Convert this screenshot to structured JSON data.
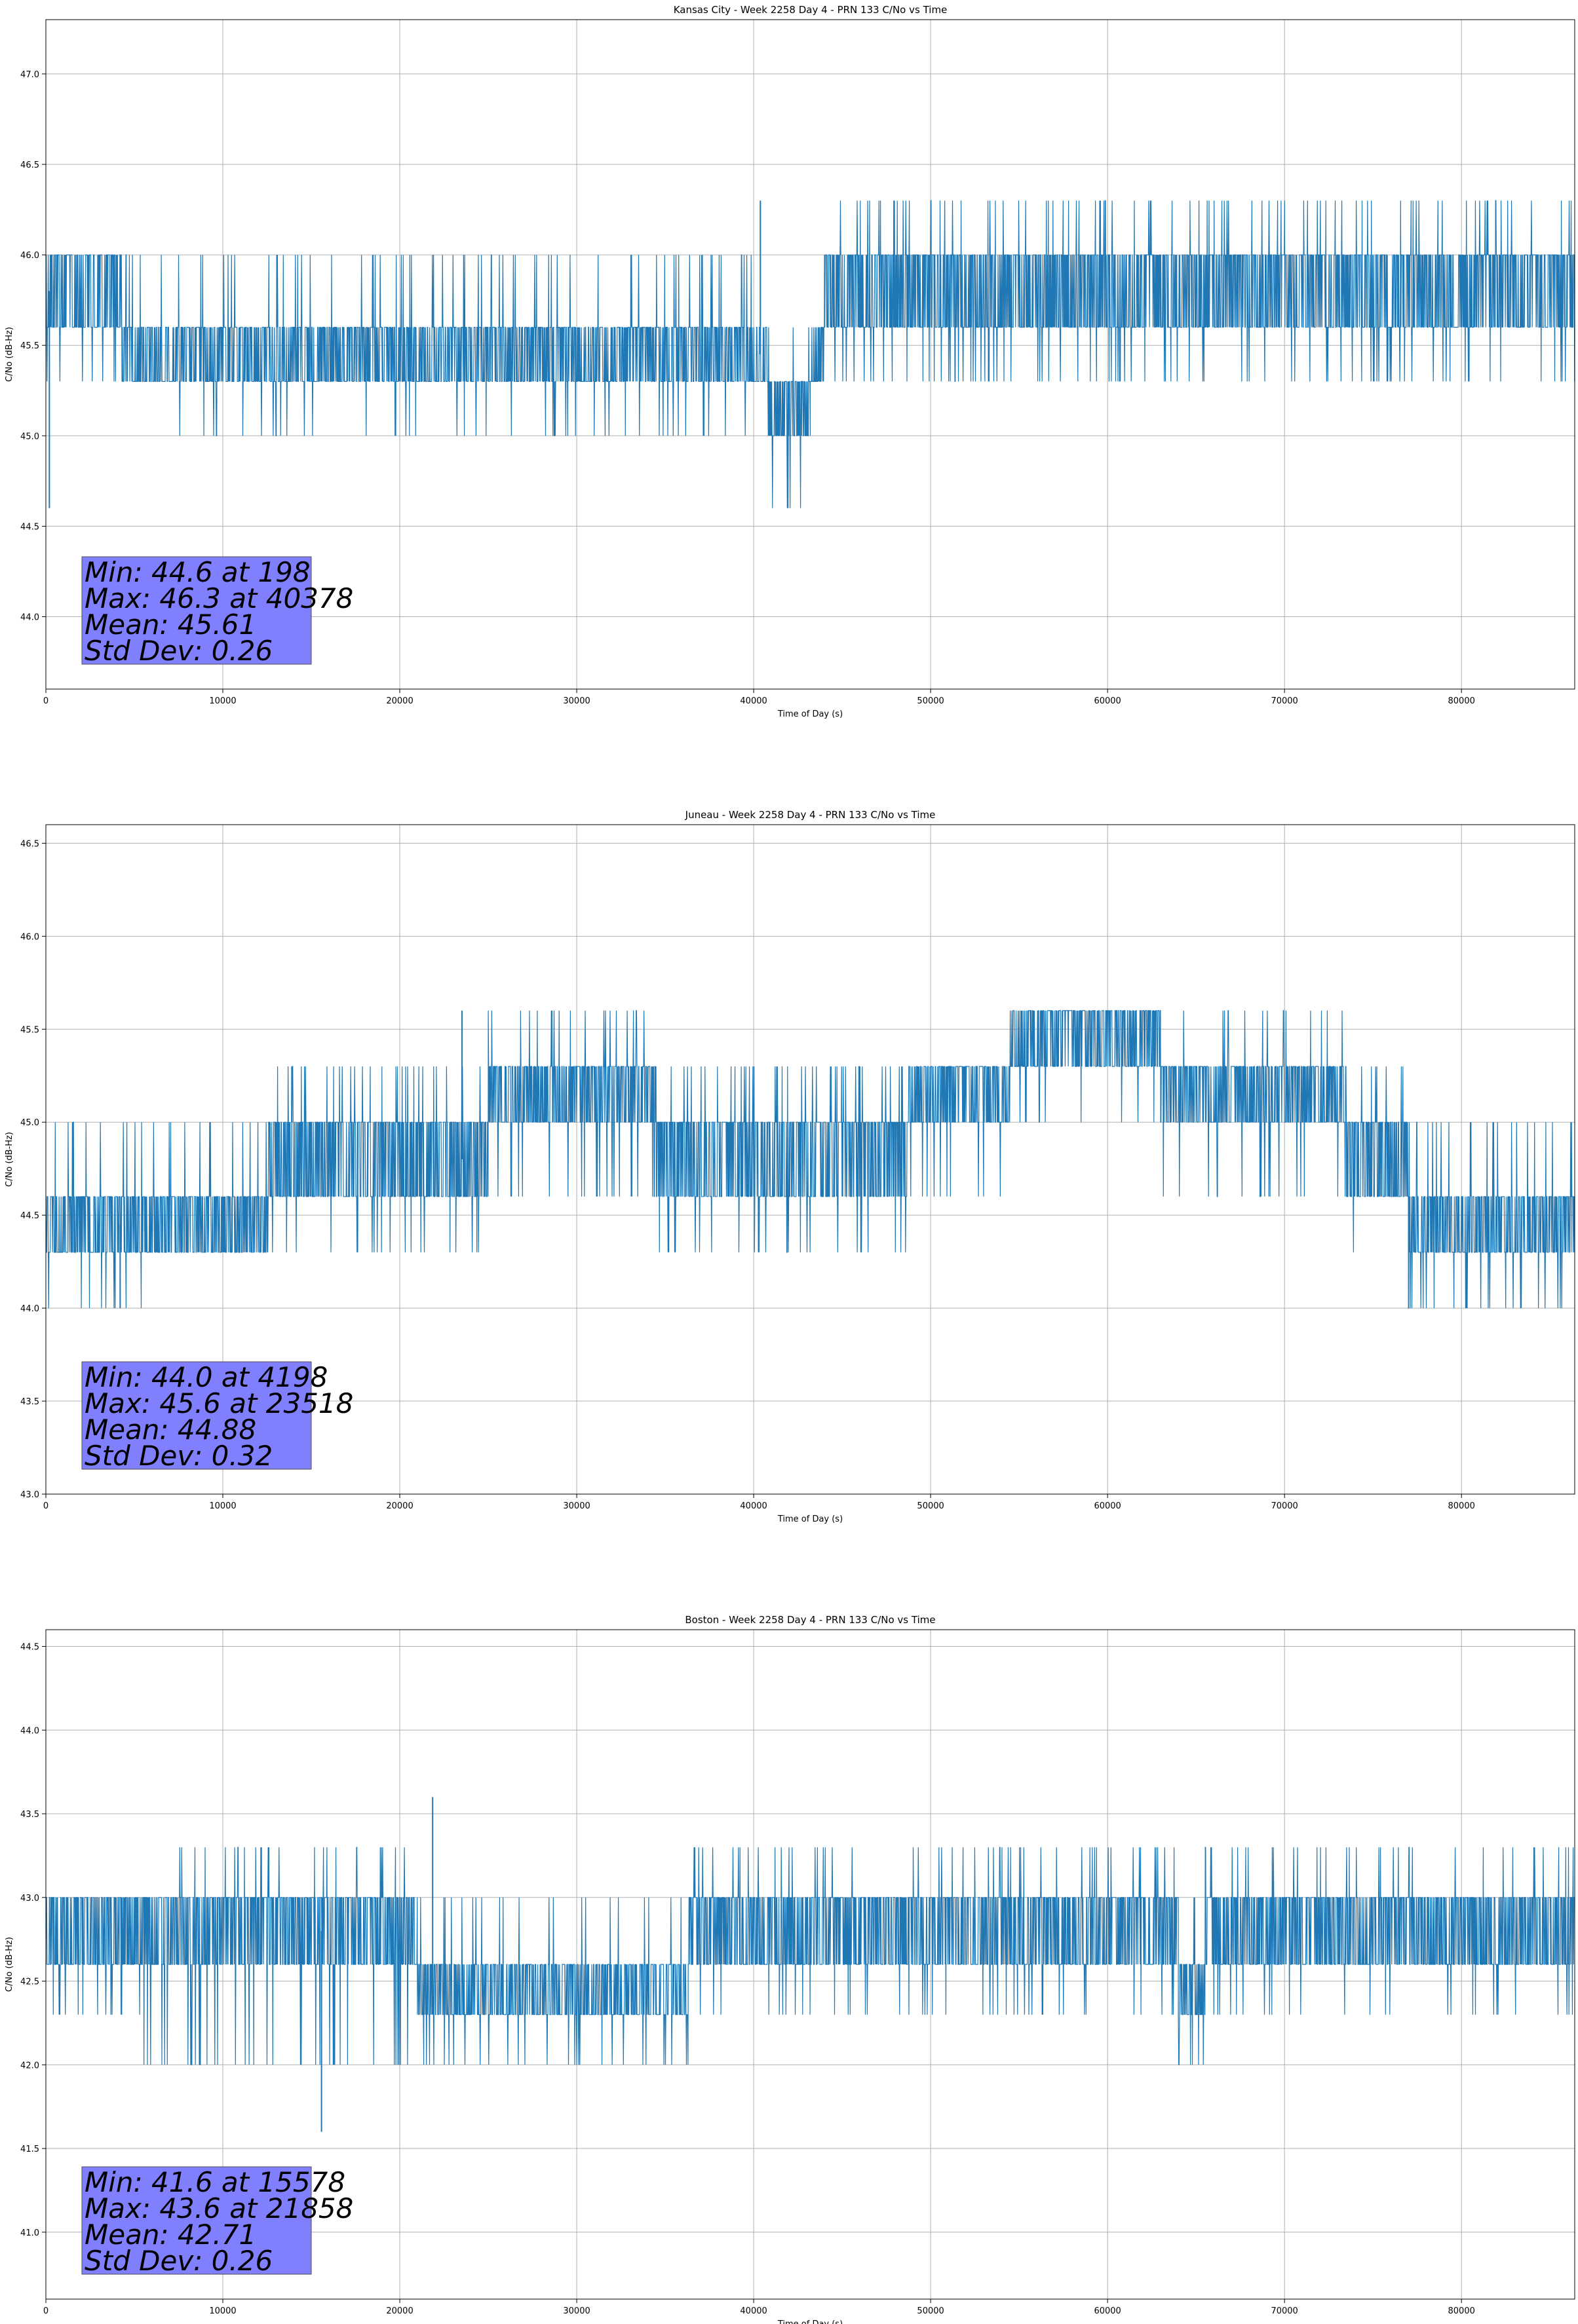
{
  "chart_data": [
    {
      "type": "line",
      "title": "Kansas City - Week 2258 Day 4 - PRN 133 C/No vs Time",
      "xlabel": "Time of Day (s)",
      "ylabel": "C/No (dB-Hz)",
      "xlim": [
        0,
        86400
      ],
      "ylim": [
        43.6,
        47.3
      ],
      "xticks": [
        0,
        10000,
        20000,
        30000,
        40000,
        50000,
        60000,
        70000,
        80000
      ],
      "yticks": [
        44.0,
        44.5,
        45.0,
        45.5,
        46.0,
        46.5,
        47.0
      ],
      "grid": true,
      "color": "#1f77b4",
      "segments": [
        {
          "x": [
            0,
            4300
          ],
          "lo": 45.6,
          "hi": 46.0,
          "spike_up": 46.0,
          "spike_down": 45.3
        },
        {
          "x": [
            4300,
            7500
          ],
          "lo": 45.3,
          "hi": 45.6,
          "spike_up": 46.0,
          "spike_down": 45.3
        },
        {
          "x": [
            7500,
            26500
          ],
          "lo": 45.3,
          "hi": 45.6,
          "spike_up": 46.0,
          "spike_down": 45.0
        },
        {
          "x": [
            26500,
            40800
          ],
          "lo": 45.3,
          "hi": 45.6,
          "spike_up": 46.0,
          "spike_down": 45.0
        },
        {
          "x": [
            40800,
            43200
          ],
          "lo": 45.0,
          "hi": 45.3,
          "spike_up": 45.6,
          "spike_down": 44.6
        },
        {
          "x": [
            43200,
            44000
          ],
          "lo": 45.3,
          "hi": 45.6,
          "spike_up": 46.0,
          "spike_down": 45.0
        },
        {
          "x": [
            44000,
            86400
          ],
          "lo": 45.6,
          "hi": 46.0,
          "spike_up": 46.3,
          "spike_down": 45.3
        }
      ],
      "extremes": [
        {
          "x": 198,
          "y": 44.6
        },
        {
          "x": 40378,
          "y": 46.3
        }
      ],
      "stats": [
        "Min: 44.6 at 198",
        "Max: 46.3 at 40378",
        "Mean: 45.61",
        "Std Dev: 0.26"
      ],
      "stats_box_color": "#8080ff"
    },
    {
      "type": "line",
      "title": "Juneau - Week 2258 Day 4 - PRN 133 C/No vs Time",
      "xlabel": "Time of Day (s)",
      "ylabel": "C/No (dB-Hz)",
      "xlim": [
        0,
        86400
      ],
      "ylim": [
        43.0,
        46.6
      ],
      "xticks": [
        0,
        10000,
        20000,
        30000,
        40000,
        50000,
        60000,
        70000,
        80000
      ],
      "yticks": [
        43.0,
        43.5,
        44.0,
        44.5,
        45.0,
        45.5,
        46.0,
        46.5
      ],
      "grid": true,
      "color": "#1f77b4",
      "segments": [
        {
          "x": [
            0,
            6000
          ],
          "lo": 44.3,
          "hi": 44.6,
          "spike_up": 45.0,
          "spike_down": 44.0
        },
        {
          "x": [
            6000,
            12500
          ],
          "lo": 44.3,
          "hi": 44.6,
          "spike_up": 45.0,
          "spike_down": 44.3
        },
        {
          "x": [
            12500,
            25000
          ],
          "lo": 44.6,
          "hi": 45.0,
          "spike_up": 45.3,
          "spike_down": 44.3
        },
        {
          "x": [
            25000,
            34500
          ],
          "lo": 45.0,
          "hi": 45.3,
          "spike_up": 45.6,
          "spike_down": 44.6
        },
        {
          "x": [
            34500,
            48700
          ],
          "lo": 44.6,
          "hi": 45.0,
          "spike_up": 45.3,
          "spike_down": 44.3
        },
        {
          "x": [
            48700,
            54500
          ],
          "lo": 45.0,
          "hi": 45.3,
          "spike_up": 45.3,
          "spike_down": 44.6
        },
        {
          "x": [
            54500,
            63000
          ],
          "lo": 45.3,
          "hi": 45.6,
          "spike_up": 45.6,
          "spike_down": 45.0
        },
        {
          "x": [
            63000,
            73500
          ],
          "lo": 45.0,
          "hi": 45.3,
          "spike_up": 45.6,
          "spike_down": 44.6
        },
        {
          "x": [
            73500,
            77000
          ],
          "lo": 44.6,
          "hi": 45.0,
          "spike_up": 45.3,
          "spike_down": 44.3
        },
        {
          "x": [
            77000,
            86400
          ],
          "lo": 44.3,
          "hi": 44.6,
          "spike_up": 45.0,
          "spike_down": 44.0
        }
      ],
      "extremes": [
        {
          "x": 4198,
          "y": 44.0
        },
        {
          "x": 23518,
          "y": 45.6
        }
      ],
      "stats": [
        "Min: 44.0 at 4198",
        "Max: 45.6 at 23518",
        "Mean: 44.88",
        "Std Dev: 0.32"
      ],
      "stats_box_color": "#8080ff"
    },
    {
      "type": "line",
      "title": "Boston - Week 2258 Day 4 - PRN 133 C/No vs Time",
      "xlabel": "Time of Day (s)",
      "ylabel": "C/No (dB-Hz)",
      "xlim": [
        0,
        86400
      ],
      "ylim": [
        40.6,
        44.6
      ],
      "xticks": [
        0,
        10000,
        20000,
        30000,
        40000,
        50000,
        60000,
        70000,
        80000
      ],
      "yticks": [
        41.0,
        41.5,
        42.0,
        42.5,
        43.0,
        43.5,
        44.0,
        44.5
      ],
      "grid": true,
      "color": "#1f77b4",
      "segments": [
        {
          "x": [
            0,
            5500
          ],
          "lo": 42.6,
          "hi": 43.0,
          "spike_up": 43.0,
          "spike_down": 42.3
        },
        {
          "x": [
            5500,
            21000
          ],
          "lo": 42.6,
          "hi": 43.0,
          "spike_up": 43.3,
          "spike_down": 42.0
        },
        {
          "x": [
            21000,
            36300
          ],
          "lo": 42.3,
          "hi": 42.6,
          "spike_up": 43.0,
          "spike_down": 42.0
        },
        {
          "x": [
            36300,
            64000
          ],
          "lo": 42.6,
          "hi": 43.0,
          "spike_up": 43.3,
          "spike_down": 42.3
        },
        {
          "x": [
            64000,
            65500
          ],
          "lo": 42.3,
          "hi": 42.6,
          "spike_up": 43.0,
          "spike_down": 42.0
        },
        {
          "x": [
            65500,
            86400
          ],
          "lo": 42.6,
          "hi": 43.0,
          "spike_up": 43.3,
          "spike_down": 42.3
        }
      ],
      "extremes": [
        {
          "x": 15578,
          "y": 41.6
        },
        {
          "x": 21858,
          "y": 43.6
        }
      ],
      "stats": [
        "Min: 41.6 at 15578",
        "Max: 43.6 at 21858",
        "Mean: 42.71",
        "Std Dev: 0.26"
      ],
      "stats_box_color": "#8080ff"
    }
  ]
}
